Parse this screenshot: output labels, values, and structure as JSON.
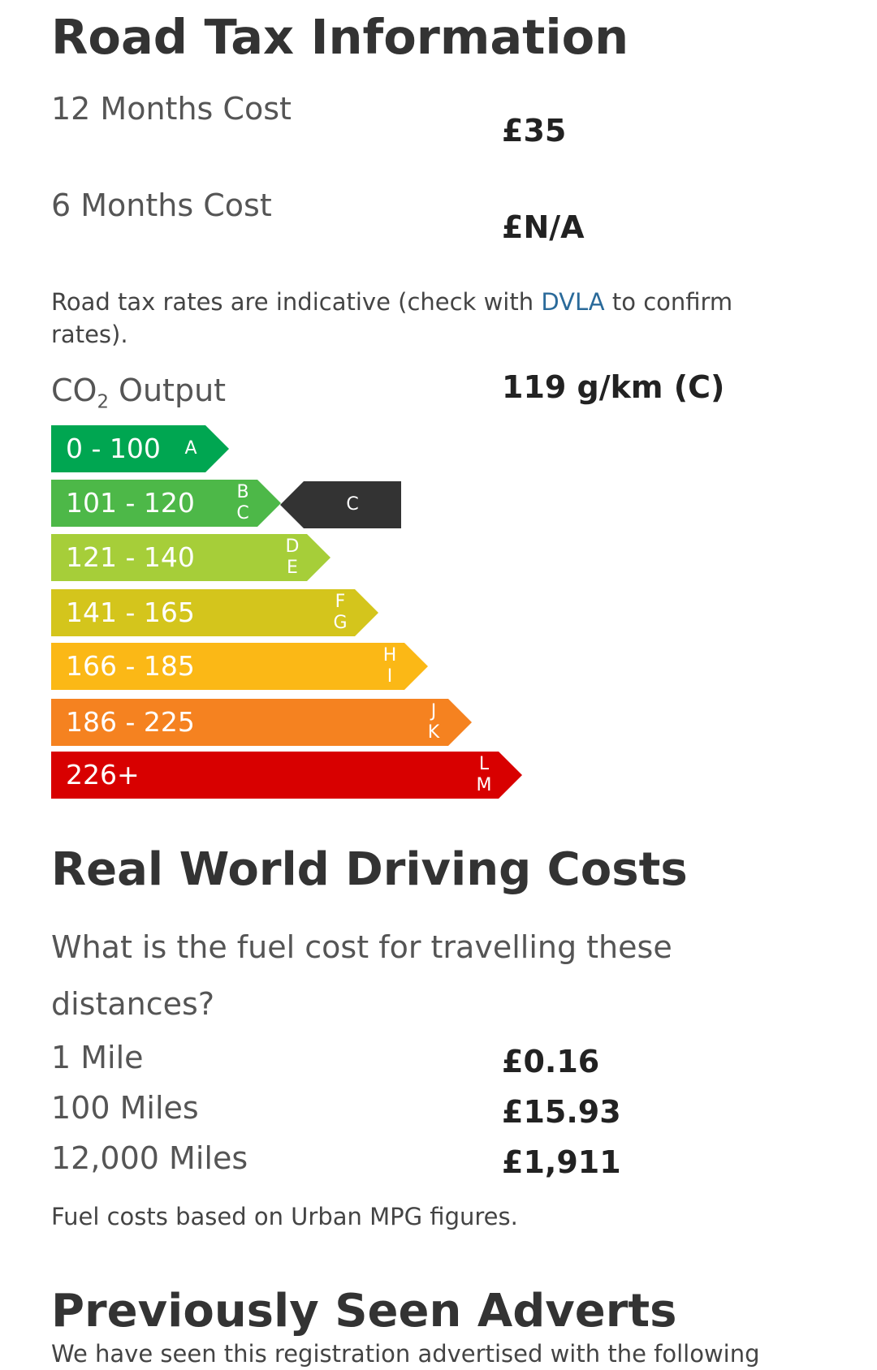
{
  "road_tax": {
    "title": "Road Tax Information",
    "rows": [
      {
        "label": "12 Months Cost",
        "value": "£35"
      },
      {
        "label": "6 Months Cost",
        "value": "£N/A"
      }
    ],
    "note_prefix": "Road tax rates are indicative (check with ",
    "note_link": "DVLA",
    "note_suffix": " to confirm rates).",
    "co2_label_main": "CO",
    "co2_label_sub": "2",
    "co2_label_rest": " Output",
    "co2_value": "119 g/km (C)"
  },
  "co2_bands": {
    "bands": [
      {
        "range": "0 - 100",
        "letters": [
          "A"
        ],
        "color": "#00a651"
      },
      {
        "range": "101 - 120",
        "letters": [
          "B",
          "C"
        ],
        "color": "#4db848"
      },
      {
        "range": "121 - 140",
        "letters": [
          "D",
          "E"
        ],
        "color": "#a6ce39"
      },
      {
        "range": "141 - 165",
        "letters": [
          "F",
          "G"
        ],
        "color": "#d4c51c"
      },
      {
        "range": "166 - 185",
        "letters": [
          "H",
          "I"
        ],
        "color": "#fbb816"
      },
      {
        "range": "186 - 225",
        "letters": [
          "J",
          "K"
        ],
        "color": "#f58220"
      },
      {
        "range": "226+",
        "letters": [
          "L",
          "M"
        ],
        "color": "#d80000"
      }
    ],
    "current_band_index": 1,
    "current_letter": "C",
    "pointer_color": "#333333"
  },
  "driving_costs": {
    "title": "Real World Driving Costs",
    "question": "What is the fuel cost for travelling these distances?",
    "rows": [
      {
        "label": "1 Mile",
        "value": "£0.16"
      },
      {
        "label": "100 Miles",
        "value": "£15.93"
      },
      {
        "label": "12,000 Miles",
        "value": "£1,911"
      }
    ],
    "note": "Fuel costs based on Urban MPG figures."
  },
  "previous_adverts": {
    "title": "Previously Seen Adverts",
    "intro": "We have seen this registration advertised with the following"
  }
}
